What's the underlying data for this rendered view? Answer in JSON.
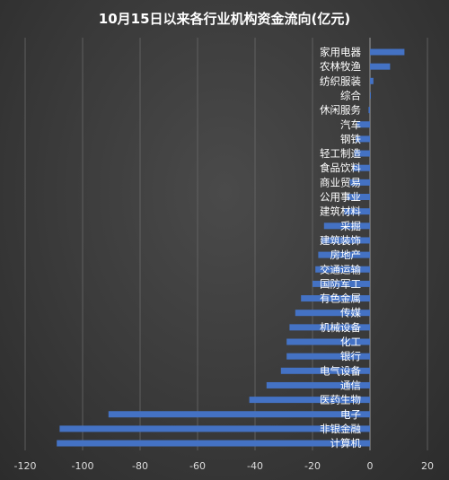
{
  "chart_data": {
    "type": "bar",
    "orientation": "horizontal",
    "title": "10月15日以来各行业机构资金流向(亿元)",
    "xlabel": "",
    "ylabel": "",
    "xlim": [
      -120,
      20
    ],
    "xticks": [
      "-120",
      "-100",
      "-80",
      "-60",
      "-40",
      "-20",
      "0",
      "20"
    ],
    "grid": true,
    "legend": "none",
    "bar_color": "#4472c4",
    "categories": [
      "家用电器",
      "农林牧渔",
      "纺织服装",
      "综合",
      "休闲服务",
      "汽车",
      "钢铁",
      "轻工制造",
      "食品饮料",
      "商业贸易",
      "公用事业",
      "建筑材料",
      "采掘",
      "建筑装饰",
      "房地产",
      "交通运输",
      "国防军工",
      "有色金属",
      "传媒",
      "机械设备",
      "化工",
      "银行",
      "电气设备",
      "通信",
      "医药生物",
      "电子",
      "非银金融",
      "计算机"
    ],
    "values": [
      12,
      7,
      1.2,
      0.3,
      -0.5,
      -4.5,
      -5,
      -5.5,
      -6,
      -7,
      -8,
      -9,
      -16,
      -17,
      -18,
      -19,
      -20,
      -24,
      -26,
      -28,
      -29,
      -29,
      -31,
      -36,
      -42,
      -91,
      -108,
      -109
    ]
  }
}
